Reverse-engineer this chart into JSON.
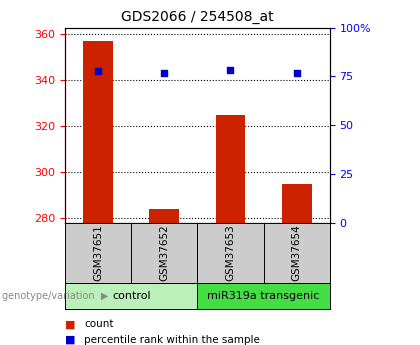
{
  "title": "GDS2066 / 254508_at",
  "samples": [
    "GSM37651",
    "GSM37652",
    "GSM37653",
    "GSM37654"
  ],
  "count_values": [
    357,
    284,
    325,
    295
  ],
  "percentile_values": [
    344,
    343,
    344.5,
    343
  ],
  "y_min": 278,
  "y_max": 363,
  "y_ticks": [
    280,
    300,
    320,
    340,
    360
  ],
  "y2_ticks": [
    0,
    25,
    50,
    75,
    100
  ],
  "bar_color": "#cc2200",
  "scatter_color": "#0000cc",
  "groups": [
    {
      "label": "control",
      "samples": [
        0,
        1
      ],
      "color": "#bbf0bb"
    },
    {
      "label": "miR319a transgenic",
      "samples": [
        2,
        3
      ],
      "color": "#44dd44"
    }
  ],
  "xlabel_gray_bg": "#cccccc",
  "legend_count_color": "#cc2200",
  "legend_pct_color": "#0000cc",
  "bar_width": 0.45
}
